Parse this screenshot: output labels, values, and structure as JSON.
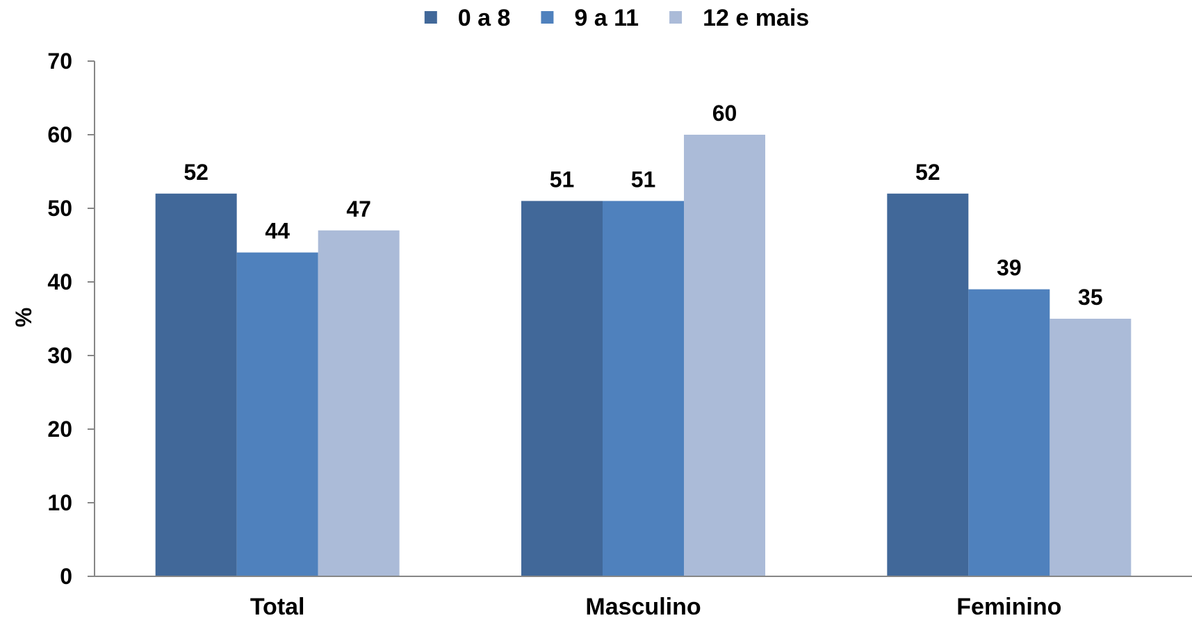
{
  "chart_data": {
    "type": "bar",
    "categories": [
      "Total",
      "Masculino",
      "Feminino"
    ],
    "series": [
      {
        "name": "0 a 8",
        "values": [
          52,
          51,
          52
        ],
        "labels": [
          "52",
          "51",
          "52"
        ],
        "color": "#416899"
      },
      {
        "name": "9 a 11",
        "values": [
          44,
          51,
          39
        ],
        "labels": [
          "44",
          "51",
          "39"
        ],
        "color": "#4f81bd"
      },
      {
        "name": "12 e mais",
        "values": [
          47,
          60,
          35
        ],
        "labels": [
          "47",
          "60",
          "35"
        ],
        "color": "#abbbd8"
      }
    ],
    "ylabel": "%",
    "ylim": [
      0,
      70
    ],
    "yticks": [
      0,
      10,
      20,
      30,
      40,
      50,
      60,
      70
    ],
    "legend_position": "top",
    "grid": false
  }
}
